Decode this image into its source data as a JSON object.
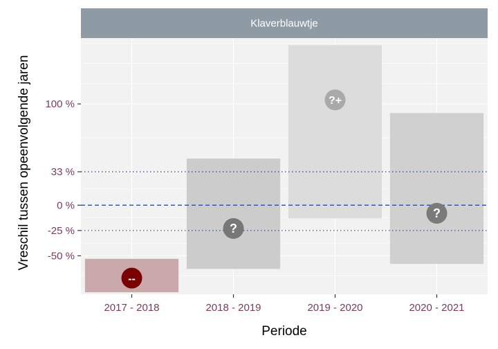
{
  "chart_data": {
    "type": "crossbar",
    "title": "",
    "facet_label": "Klaverblauwtje",
    "xlabel": "Periode",
    "ylabel": "Vreschil tussen opeenvolgende jaren",
    "categories": [
      "2017 - 2018",
      "2018 - 2019",
      "2019 - 2020",
      "2020 - 2021"
    ],
    "ylim": [
      -88,
      165
    ],
    "y_ticks": [
      {
        "value": -50,
        "label": "-50 %"
      },
      {
        "value": -25,
        "label": "-25 %"
      },
      {
        "value": 0,
        "label": "0 %"
      },
      {
        "value": 33,
        "label": "33 %"
      },
      {
        "value": 100,
        "label": "100 %"
      }
    ],
    "reference_lines": [
      {
        "value": 0,
        "style": "dashed"
      },
      {
        "value": -25,
        "style": "dotted"
      },
      {
        "value": 33,
        "style": "dotted"
      }
    ],
    "series": [
      {
        "category": "2017 - 2018",
        "estimate": -72,
        "lower": -86,
        "upper": -53,
        "marker": "--",
        "fill": "#c9a9aa",
        "marker_color": "#7a0000"
      },
      {
        "category": "2018 - 2019",
        "estimate": -23,
        "lower": -63,
        "upper": 46,
        "marker": "?",
        "fill": "#cccccc",
        "marker_color": "#777777"
      },
      {
        "category": "2019 - 2020",
        "estimate": 104,
        "lower": -13,
        "upper": 158,
        "marker": "?+",
        "fill": "#dcdcdc",
        "marker_color": "#a9a9a9"
      },
      {
        "category": "2020 - 2021",
        "estimate": -8,
        "lower": -58,
        "upper": 91,
        "marker": "?",
        "fill": "#d0d0d0",
        "marker_color": "#7a7a7a"
      }
    ],
    "colors": {
      "panel_bg": "#f2f2f2",
      "grid": "#ffffff",
      "strip_bg": "#8e9ba5",
      "reference_line": "#2e4d9a",
      "tick_label": "#7b3a5c"
    }
  }
}
